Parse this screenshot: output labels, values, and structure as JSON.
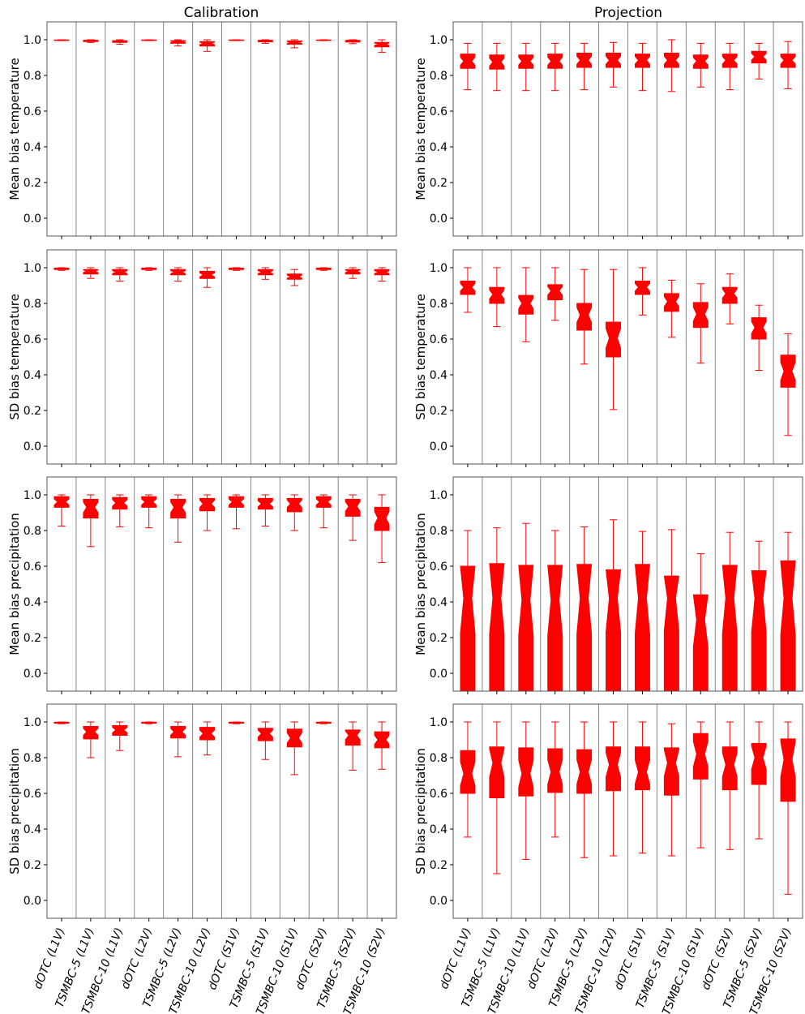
{
  "figure": {
    "column_titles": [
      "Calibration",
      "Projection"
    ]
  },
  "chart_data": {
    "type": "boxplot",
    "categories": [
      "dOTC (L1V)",
      "TSMBC-5 (L1V)",
      "TSMBC-10 (L1V)",
      "dOTC (L2V)",
      "TSMBC-5 (L2V)",
      "TSMBC-10 (L2V)",
      "dOTC (S1V)",
      "TSMBC-5 (S1V)",
      "TSMBC-10 (S1V)",
      "dOTC (S2V)",
      "TSMBC-5 (S2V)",
      "TSMBC-10 (S2V)"
    ],
    "ylim": [
      -0.1,
      1.1
    ],
    "yticks": [
      "0.0",
      "0.2",
      "0.4",
      "0.6",
      "0.8",
      "1.0"
    ],
    "ytick_values": [
      0.0,
      0.2,
      0.4,
      0.6,
      0.8,
      1.0
    ],
    "box_color": "#ff0000",
    "panels": [
      {
        "column": "Calibration",
        "ylabel": "Mean bias temperature",
        "boxes": [
          {
            "whislo": 0.995,
            "q1": 0.996,
            "med": 0.998,
            "q3": 0.999,
            "whishi": 1.0
          },
          {
            "whislo": 0.985,
            "q1": 0.99,
            "med": 0.993,
            "q3": 0.997,
            "whishi": 1.0
          },
          {
            "whislo": 0.975,
            "q1": 0.985,
            "med": 0.99,
            "q3": 0.995,
            "whishi": 1.0
          },
          {
            "whislo": 0.995,
            "q1": 0.996,
            "med": 0.998,
            "q3": 0.999,
            "whishi": 1.0
          },
          {
            "whislo": 0.965,
            "q1": 0.98,
            "med": 0.988,
            "q3": 0.995,
            "whishi": 1.0
          },
          {
            "whislo": 0.935,
            "q1": 0.965,
            "med": 0.98,
            "q3": 0.99,
            "whishi": 1.0
          },
          {
            "whislo": 0.995,
            "q1": 0.996,
            "med": 0.998,
            "q3": 0.999,
            "whishi": 1.0
          },
          {
            "whislo": 0.98,
            "q1": 0.988,
            "med": 0.993,
            "q3": 0.997,
            "whishi": 1.0
          },
          {
            "whislo": 0.955,
            "q1": 0.975,
            "med": 0.985,
            "q3": 0.993,
            "whishi": 1.0
          },
          {
            "whislo": 0.995,
            "q1": 0.996,
            "med": 0.998,
            "q3": 0.999,
            "whishi": 1.0
          },
          {
            "whislo": 0.978,
            "q1": 0.987,
            "med": 0.992,
            "q3": 0.997,
            "whishi": 1.0
          },
          {
            "whislo": 0.93,
            "q1": 0.96,
            "med": 0.975,
            "q3": 0.985,
            "whishi": 1.0
          }
        ]
      },
      {
        "column": "Projection",
        "ylabel": "Mean bias temperature",
        "boxes": [
          {
            "whislo": 0.72,
            "q1": 0.84,
            "med": 0.88,
            "q3": 0.92,
            "whishi": 0.98
          },
          {
            "whislo": 0.715,
            "q1": 0.835,
            "med": 0.875,
            "q3": 0.915,
            "whishi": 0.98
          },
          {
            "whislo": 0.715,
            "q1": 0.84,
            "med": 0.88,
            "q3": 0.915,
            "whishi": 0.98
          },
          {
            "whislo": 0.715,
            "q1": 0.84,
            "med": 0.88,
            "q3": 0.92,
            "whishi": 0.98
          },
          {
            "whislo": 0.72,
            "q1": 0.845,
            "med": 0.885,
            "q3": 0.925,
            "whishi": 0.98
          },
          {
            "whislo": 0.735,
            "q1": 0.845,
            "med": 0.885,
            "q3": 0.925,
            "whishi": 0.985
          },
          {
            "whislo": 0.715,
            "q1": 0.845,
            "med": 0.885,
            "q3": 0.92,
            "whishi": 0.98
          },
          {
            "whislo": 0.71,
            "q1": 0.845,
            "med": 0.885,
            "q3": 0.925,
            "whishi": 1.0
          },
          {
            "whislo": 0.735,
            "q1": 0.84,
            "med": 0.88,
            "q3": 0.915,
            "whishi": 0.98
          },
          {
            "whislo": 0.72,
            "q1": 0.845,
            "med": 0.885,
            "q3": 0.92,
            "whishi": 0.98
          },
          {
            "whislo": 0.78,
            "q1": 0.87,
            "med": 0.905,
            "q3": 0.935,
            "whishi": 0.98
          },
          {
            "whislo": 0.725,
            "q1": 0.845,
            "med": 0.885,
            "q3": 0.92,
            "whishi": 0.99
          }
        ]
      },
      {
        "column": "Calibration",
        "ylabel": "SD bias temperature",
        "boxes": [
          {
            "whislo": 0.985,
            "q1": 0.99,
            "med": 0.995,
            "q3": 0.998,
            "whishi": 1.0
          },
          {
            "whislo": 0.94,
            "q1": 0.965,
            "med": 0.98,
            "q3": 0.99,
            "whishi": 1.0
          },
          {
            "whislo": 0.925,
            "q1": 0.96,
            "med": 0.975,
            "q3": 0.99,
            "whishi": 1.0
          },
          {
            "whislo": 0.985,
            "q1": 0.99,
            "med": 0.995,
            "q3": 0.998,
            "whishi": 1.0
          },
          {
            "whislo": 0.925,
            "q1": 0.96,
            "med": 0.975,
            "q3": 0.99,
            "whishi": 1.0
          },
          {
            "whislo": 0.89,
            "q1": 0.94,
            "med": 0.96,
            "q3": 0.98,
            "whishi": 1.0
          },
          {
            "whislo": 0.985,
            "q1": 0.99,
            "med": 0.995,
            "q3": 0.998,
            "whishi": 1.0
          },
          {
            "whislo": 0.935,
            "q1": 0.96,
            "med": 0.975,
            "q3": 0.99,
            "whishi": 1.0
          },
          {
            "whislo": 0.9,
            "q1": 0.935,
            "med": 0.95,
            "q3": 0.965,
            "whishi": 0.99
          },
          {
            "whislo": 0.985,
            "q1": 0.99,
            "med": 0.995,
            "q3": 0.998,
            "whishi": 1.0
          },
          {
            "whislo": 0.94,
            "q1": 0.965,
            "med": 0.98,
            "q3": 0.99,
            "whishi": 1.0
          },
          {
            "whislo": 0.925,
            "q1": 0.96,
            "med": 0.975,
            "q3": 0.99,
            "whishi": 1.0
          }
        ]
      },
      {
        "column": "Projection",
        "ylabel": "SD bias temperature",
        "boxes": [
          {
            "whislo": 0.75,
            "q1": 0.85,
            "med": 0.89,
            "q3": 0.925,
            "whishi": 1.0
          },
          {
            "whislo": 0.67,
            "q1": 0.8,
            "med": 0.85,
            "q3": 0.89,
            "whishi": 1.0
          },
          {
            "whislo": 0.585,
            "q1": 0.74,
            "med": 0.8,
            "q3": 0.845,
            "whishi": 1.0
          },
          {
            "whislo": 0.705,
            "q1": 0.82,
            "med": 0.87,
            "q3": 0.905,
            "whishi": 1.0
          },
          {
            "whislo": 0.46,
            "q1": 0.65,
            "med": 0.735,
            "q3": 0.8,
            "whishi": 0.99
          },
          {
            "whislo": 0.205,
            "q1": 0.5,
            "med": 0.605,
            "q3": 0.695,
            "whishi": 0.99
          },
          {
            "whislo": 0.735,
            "q1": 0.85,
            "med": 0.89,
            "q3": 0.925,
            "whishi": 1.0
          },
          {
            "whislo": 0.61,
            "q1": 0.755,
            "med": 0.81,
            "q3": 0.855,
            "whishi": 0.93
          },
          {
            "whislo": 0.465,
            "q1": 0.665,
            "med": 0.74,
            "q3": 0.805,
            "whishi": 0.91
          },
          {
            "whislo": 0.685,
            "q1": 0.8,
            "med": 0.855,
            "q3": 0.89,
            "whishi": 0.965
          },
          {
            "whislo": 0.425,
            "q1": 0.6,
            "med": 0.665,
            "q3": 0.72,
            "whishi": 0.79
          },
          {
            "whislo": 0.06,
            "q1": 0.33,
            "med": 0.42,
            "q3": 0.51,
            "whishi": 0.63
          }
        ]
      },
      {
        "column": "Calibration",
        "ylabel": "Mean bias precipitation",
        "boxes": [
          {
            "whislo": 0.825,
            "q1": 0.93,
            "med": 0.96,
            "q3": 0.99,
            "whishi": 1.0
          },
          {
            "whislo": 0.71,
            "q1": 0.87,
            "med": 0.93,
            "q3": 0.975,
            "whishi": 1.0
          },
          {
            "whislo": 0.82,
            "q1": 0.92,
            "med": 0.955,
            "q3": 0.985,
            "whishi": 1.0
          },
          {
            "whislo": 0.815,
            "q1": 0.93,
            "med": 0.96,
            "q3": 0.99,
            "whishi": 1.0
          },
          {
            "whislo": 0.735,
            "q1": 0.87,
            "med": 0.93,
            "q3": 0.975,
            "whishi": 1.0
          },
          {
            "whislo": 0.8,
            "q1": 0.91,
            "med": 0.95,
            "q3": 0.98,
            "whishi": 1.0
          },
          {
            "whislo": 0.81,
            "q1": 0.93,
            "med": 0.96,
            "q3": 0.99,
            "whishi": 1.0
          },
          {
            "whislo": 0.825,
            "q1": 0.92,
            "med": 0.95,
            "q3": 0.98,
            "whishi": 1.0
          },
          {
            "whislo": 0.8,
            "q1": 0.905,
            "med": 0.95,
            "q3": 0.98,
            "whishi": 1.0
          },
          {
            "whislo": 0.815,
            "q1": 0.93,
            "med": 0.96,
            "q3": 0.99,
            "whishi": 1.0
          },
          {
            "whislo": 0.745,
            "q1": 0.88,
            "med": 0.935,
            "q3": 0.975,
            "whishi": 1.0
          },
          {
            "whislo": 0.62,
            "q1": 0.8,
            "med": 0.87,
            "q3": 0.93,
            "whishi": 1.0
          }
        ]
      },
      {
        "column": "Projection",
        "ylabel": "Mean bias precipitation",
        "boxes": [
          {
            "whislo": -0.1,
            "q1": -0.1,
            "med": 0.42,
            "q3": 0.6,
            "whishi": 0.8
          },
          {
            "whislo": -0.1,
            "q1": -0.1,
            "med": 0.42,
            "q3": 0.615,
            "whishi": 0.815
          },
          {
            "whislo": -0.1,
            "q1": -0.1,
            "med": 0.41,
            "q3": 0.605,
            "whishi": 0.84
          },
          {
            "whislo": -0.1,
            "q1": -0.1,
            "med": 0.41,
            "q3": 0.605,
            "whishi": 0.8
          },
          {
            "whislo": -0.1,
            "q1": -0.1,
            "med": 0.42,
            "q3": 0.61,
            "whishi": 0.82
          },
          {
            "whislo": -0.1,
            "q1": -0.1,
            "med": 0.42,
            "q3": 0.58,
            "whishi": 0.86
          },
          {
            "whislo": -0.1,
            "q1": -0.1,
            "med": 0.42,
            "q3": 0.61,
            "whishi": 0.795
          },
          {
            "whislo": -0.1,
            "q1": -0.1,
            "med": 0.42,
            "q3": 0.545,
            "whishi": 0.805
          },
          {
            "whislo": -0.1,
            "q1": -0.1,
            "med": 0.3,
            "q3": 0.44,
            "whishi": 0.67
          },
          {
            "whislo": -0.1,
            "q1": -0.1,
            "med": 0.42,
            "q3": 0.605,
            "whishi": 0.79
          },
          {
            "whislo": -0.1,
            "q1": -0.1,
            "med": 0.42,
            "q3": 0.575,
            "whishi": 0.74
          },
          {
            "whislo": -0.1,
            "q1": -0.1,
            "med": 0.42,
            "q3": 0.63,
            "whishi": 0.79
          }
        ]
      },
      {
        "column": "Calibration",
        "ylabel": "SD bias precipitation",
        "boxes": [
          {
            "whislo": 0.99,
            "q1": 0.993,
            "med": 0.997,
            "q3": 0.999,
            "whishi": 1.0
          },
          {
            "whislo": 0.8,
            "q1": 0.905,
            "med": 0.945,
            "q3": 0.975,
            "whishi": 1.0
          },
          {
            "whislo": 0.84,
            "q1": 0.925,
            "med": 0.955,
            "q3": 0.98,
            "whishi": 1.0
          },
          {
            "whislo": 0.99,
            "q1": 0.993,
            "med": 0.997,
            "q3": 0.999,
            "whishi": 1.0
          },
          {
            "whislo": 0.805,
            "q1": 0.91,
            "med": 0.945,
            "q3": 0.975,
            "whishi": 1.0
          },
          {
            "whislo": 0.815,
            "q1": 0.9,
            "med": 0.935,
            "q3": 0.97,
            "whishi": 1.0
          },
          {
            "whislo": 0.99,
            "q1": 0.993,
            "med": 0.997,
            "q3": 0.999,
            "whishi": 1.0
          },
          {
            "whislo": 0.79,
            "q1": 0.895,
            "med": 0.935,
            "q3": 0.965,
            "whishi": 1.0
          },
          {
            "whislo": 0.705,
            "q1": 0.86,
            "med": 0.91,
            "q3": 0.96,
            "whishi": 1.0
          },
          {
            "whislo": 0.99,
            "q1": 0.993,
            "med": 0.997,
            "q3": 0.999,
            "whishi": 1.0
          },
          {
            "whislo": 0.73,
            "q1": 0.87,
            "med": 0.925,
            "q3": 0.955,
            "whishi": 1.0
          },
          {
            "whislo": 0.735,
            "q1": 0.855,
            "med": 0.9,
            "q3": 0.945,
            "whishi": 1.0
          }
        ]
      },
      {
        "column": "Projection",
        "ylabel": "SD bias precipitation",
        "boxes": [
          {
            "whislo": 0.355,
            "q1": 0.6,
            "med": 0.71,
            "q3": 0.84,
            "whishi": 1.0
          },
          {
            "whislo": 0.15,
            "q1": 0.575,
            "med": 0.77,
            "q3": 0.86,
            "whishi": 1.0
          },
          {
            "whislo": 0.23,
            "q1": 0.585,
            "med": 0.71,
            "q3": 0.855,
            "whishi": 1.0
          },
          {
            "whislo": 0.355,
            "q1": 0.605,
            "med": 0.72,
            "q3": 0.85,
            "whishi": 1.0
          },
          {
            "whislo": 0.24,
            "q1": 0.6,
            "med": 0.72,
            "q3": 0.845,
            "whishi": 1.0
          },
          {
            "whislo": 0.25,
            "q1": 0.615,
            "med": 0.76,
            "q3": 0.86,
            "whishi": 1.0
          },
          {
            "whislo": 0.265,
            "q1": 0.62,
            "med": 0.72,
            "q3": 0.86,
            "whishi": 1.0
          },
          {
            "whislo": 0.25,
            "q1": 0.59,
            "med": 0.77,
            "q3": 0.855,
            "whishi": 0.99
          },
          {
            "whislo": 0.295,
            "q1": 0.68,
            "med": 0.82,
            "q3": 0.935,
            "whishi": 1.0
          },
          {
            "whislo": 0.285,
            "q1": 0.62,
            "med": 0.76,
            "q3": 0.86,
            "whishi": 1.0
          },
          {
            "whislo": 0.345,
            "q1": 0.65,
            "med": 0.8,
            "q3": 0.88,
            "whishi": 1.0
          },
          {
            "whislo": 0.035,
            "q1": 0.555,
            "med": 0.79,
            "q3": 0.905,
            "whishi": 1.0
          }
        ]
      }
    ]
  }
}
